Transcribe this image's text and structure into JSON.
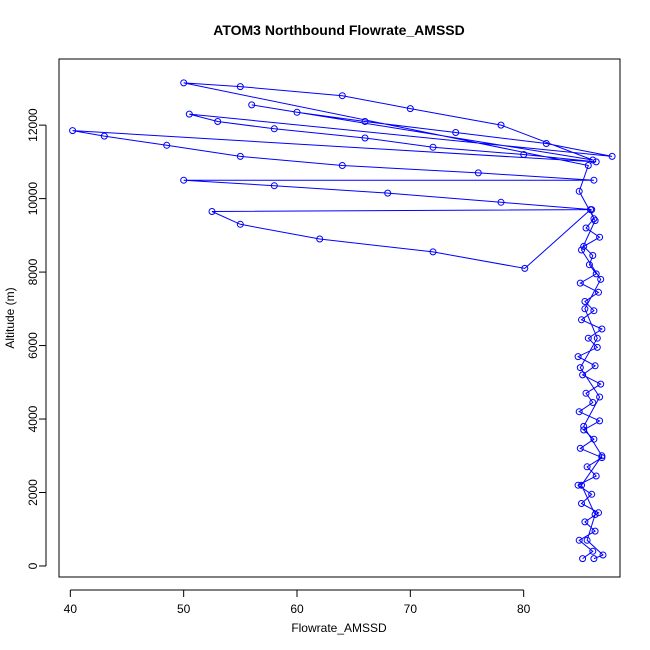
{
  "chart_data": {
    "type": "line",
    "title": "ATOM3 Northbound Flowrate_AMSSD",
    "xlabel": "Flowrate_AMSSD",
    "ylabel": "Altitude (m)",
    "xlim": [
      39,
      88.5
    ],
    "ylim": [
      -300,
      13800
    ],
    "xticks": [
      40,
      50,
      60,
      70,
      80
    ],
    "yticks": [
      0,
      2000,
      4000,
      6000,
      8000,
      10000,
      12000
    ],
    "grid": false,
    "legend": "none",
    "series": [
      {
        "color": "#0000ff",
        "marker": "open-circle",
        "points": [
          [
            85.2,
            200
          ],
          [
            86.1,
            400
          ],
          [
            84.9,
            700
          ],
          [
            86.3,
            950
          ],
          [
            85.4,
            1200
          ],
          [
            86.6,
            1450
          ],
          [
            85.1,
            1700
          ],
          [
            86.0,
            1950
          ],
          [
            84.8,
            2200
          ],
          [
            86.4,
            2450
          ],
          [
            85.6,
            2700
          ],
          [
            86.9,
            2950
          ],
          [
            85.0,
            3200
          ],
          [
            86.2,
            3450
          ],
          [
            85.3,
            3700
          ],
          [
            86.7,
            3950
          ],
          [
            84.9,
            4200
          ],
          [
            86.1,
            4450
          ],
          [
            85.5,
            4700
          ],
          [
            86.8,
            4950
          ],
          [
            85.2,
            5200
          ],
          [
            86.3,
            5450
          ],
          [
            84.8,
            5700
          ],
          [
            86.5,
            5950
          ],
          [
            85.7,
            6200
          ],
          [
            86.9,
            6450
          ],
          [
            85.1,
            6700
          ],
          [
            86.2,
            6950
          ],
          [
            85.4,
            7200
          ],
          [
            86.6,
            7450
          ],
          [
            85.0,
            7700
          ],
          [
            86.4,
            7950
          ],
          [
            85.8,
            8200
          ],
          [
            86.1,
            8450
          ],
          [
            85.3,
            8700
          ],
          [
            86.7,
            8950
          ],
          [
            85.5,
            9200
          ],
          [
            86.2,
            9450
          ],
          [
            85.9,
            9700
          ],
          [
            80.1,
            8100
          ],
          [
            72.0,
            8550
          ],
          [
            62.0,
            8900
          ],
          [
            55.0,
            9300
          ],
          [
            52.5,
            9650
          ],
          [
            86.0,
            9700
          ],
          [
            78.0,
            9900
          ],
          [
            68.0,
            10150
          ],
          [
            58.0,
            10350
          ],
          [
            50.0,
            10500
          ],
          [
            86.2,
            10500
          ],
          [
            76.0,
            10700
          ],
          [
            64.0,
            10900
          ],
          [
            55.0,
            11150
          ],
          [
            48.5,
            11450
          ],
          [
            43.0,
            11700
          ],
          [
            40.2,
            11850
          ],
          [
            86.4,
            11000
          ],
          [
            80.0,
            11200
          ],
          [
            72.0,
            11400
          ],
          [
            66.0,
            11650
          ],
          [
            58.0,
            11900
          ],
          [
            53.0,
            12100
          ],
          [
            50.5,
            12300
          ],
          [
            87.8,
            11150
          ],
          [
            82.0,
            11500
          ],
          [
            74.0,
            11800
          ],
          [
            66.0,
            12100
          ],
          [
            60.0,
            12350
          ],
          [
            56.0,
            12550
          ],
          [
            86.1,
            11050
          ],
          [
            78.0,
            12000
          ],
          [
            70.0,
            12450
          ],
          [
            64.0,
            12800
          ],
          [
            55.0,
            13050
          ],
          [
            50.0,
            13150
          ],
          [
            85.7,
            10900
          ],
          [
            84.9,
            10200
          ],
          [
            86.3,
            9400
          ],
          [
            85.1,
            8600
          ],
          [
            86.8,
            7800
          ],
          [
            85.4,
            7000
          ],
          [
            86.5,
            6200
          ],
          [
            85.0,
            5400
          ],
          [
            86.7,
            4600
          ],
          [
            85.3,
            3800
          ],
          [
            86.9,
            3000
          ],
          [
            85.1,
            2200
          ],
          [
            86.3,
            1400
          ],
          [
            85.6,
            700
          ],
          [
            87.0,
            300
          ],
          [
            86.2,
            200
          ]
        ]
      }
    ]
  }
}
